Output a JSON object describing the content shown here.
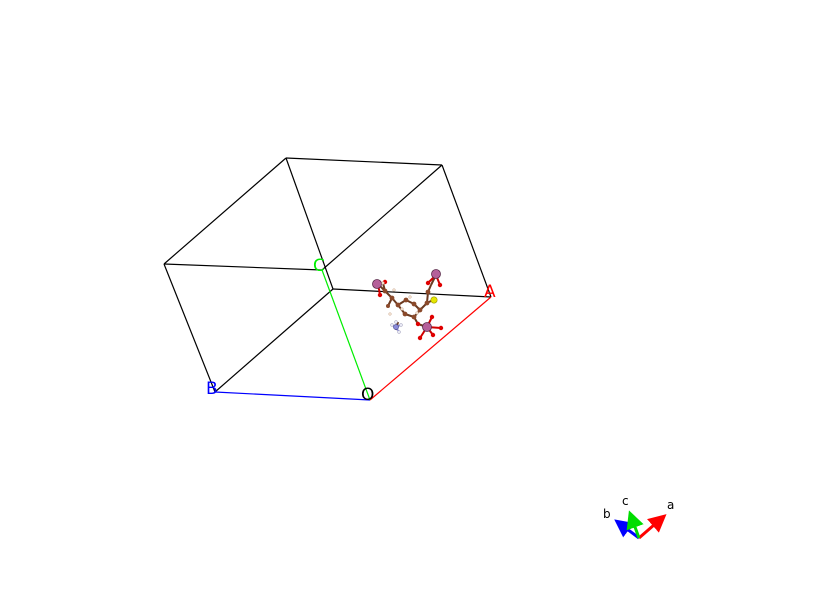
{
  "cell": {
    "labels": {
      "origin": "O",
      "a": "A",
      "b": "B",
      "c": "C"
    },
    "colors": {
      "edge": "#000000",
      "a_axis": "#ff0000",
      "b_axis": "#0000ff",
      "c_axis": "#00ee00"
    }
  },
  "orientation_triad": {
    "a_label": "a",
    "b_label": "b",
    "c_label": "c",
    "colors": {
      "a": "#ff0000",
      "b": "#0000ff",
      "c": "#00dd00"
    }
  },
  "atom_colors": {
    "carbon": "#8b4a2b",
    "oxygen": "#e00000",
    "sulfur": "#e6e600",
    "nitrogen": "#8a8ad8",
    "metal": "#b5609a",
    "hydrogen": "#f2e0d0"
  }
}
